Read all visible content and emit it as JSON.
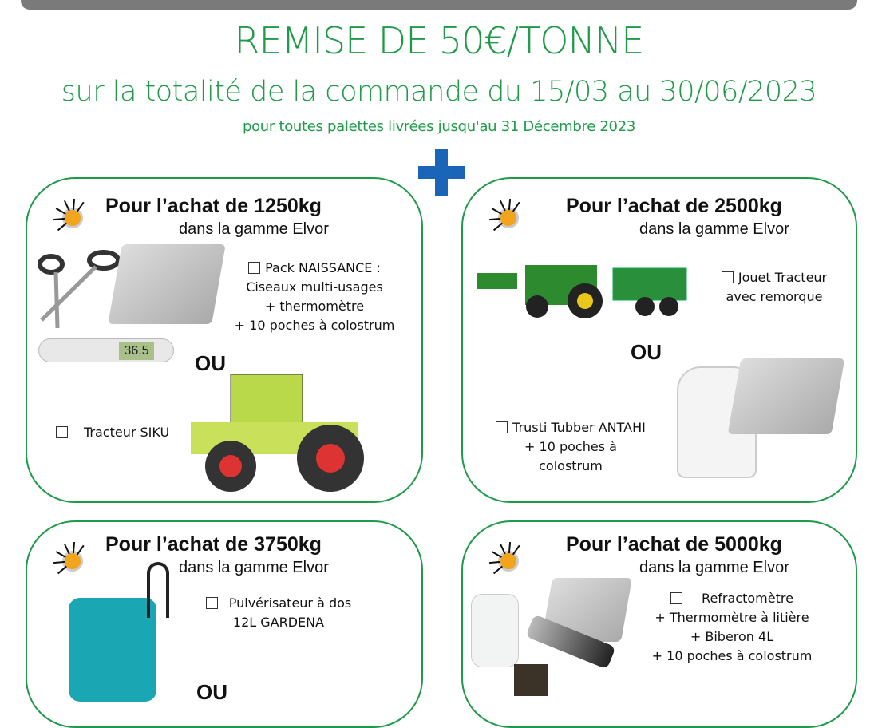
{
  "header": {
    "title": "REMISE DE 50€/TONNE",
    "subtitle": "sur la totalité de la commande du 15/03 au 30/06/2023",
    "note": "pour toutes palettes livrées jusqu'au 31 Décembre 2023",
    "accent_color": "#1f9a48",
    "plus_color": "#1a65b8"
  },
  "cards": [
    {
      "title": "Pour l’achat de 1250kg",
      "subtitle": "dans la gamme Elvor",
      "option1": [
        "Pack NAISSANCE :",
        "Ciseaux multi-usages",
        "+ thermomètre",
        "+ 10 poches à colostrum"
      ],
      "or": "OU",
      "option2": [
        "Tracteur SIKU"
      ],
      "thermo_display": "36.5"
    },
    {
      "title": "Pour l’achat de 2500kg",
      "subtitle": "dans la gamme Elvor",
      "option1": [
        "Jouet Tracteur",
        "avec remorque"
      ],
      "or": "OU",
      "option2": [
        "Trusti Tubber ANTAHI",
        "+ 10 poches à",
        "colostrum"
      ]
    },
    {
      "title": "Pour l’achat de 3750kg",
      "subtitle": "dans la gamme Elvor",
      "option1": [
        "Pulvérisateur à dos",
        "12L GARDENA"
      ],
      "or": "OU"
    },
    {
      "title": "Pour l’achat de 5000kg",
      "subtitle": "dans la gamme Elvor",
      "option1": [
        "Refractomètre",
        "+ Thermomètre à litière",
        "+ Biberon 4L",
        "+ 10 poches à colostrum"
      ]
    }
  ]
}
